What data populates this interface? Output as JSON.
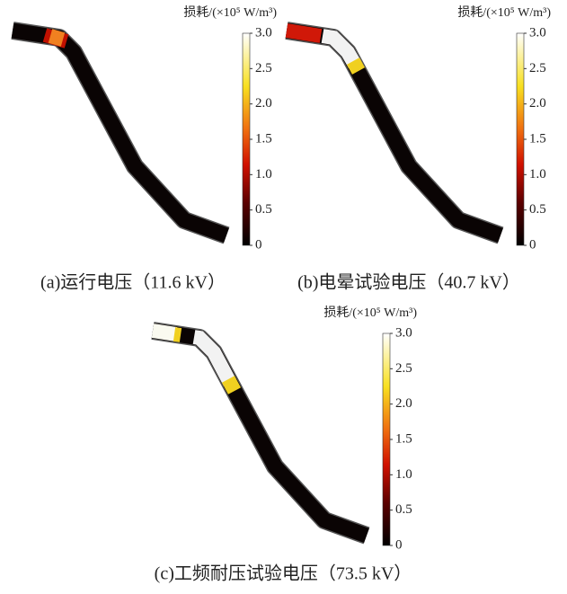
{
  "panels": [
    {
      "colorbar": {
        "title": "损耗/(×10⁵ W/m³)",
        "ticks": [
          {
            "value": 3,
            "label": "3.0"
          },
          {
            "value": 2.5,
            "label": "2.5"
          },
          {
            "value": 2,
            "label": "2.0"
          },
          {
            "value": 1.5,
            "label": "1.5"
          },
          {
            "value": 1,
            "label": "1.0"
          },
          {
            "value": 0.5,
            "label": "0.5"
          },
          0
        ]
      },
      "caption": "(a)运行电压（11.6 kV）"
    },
    {
      "colorbar": {
        "title": "损耗/(×10⁵ W/m³)",
        "ticks": [
          {
            "value": 3,
            "label": "3.0"
          },
          {
            "value": 2.5,
            "label": "2.5"
          },
          {
            "value": 2,
            "label": "2.0"
          },
          {
            "value": 1.5,
            "label": "1.5"
          },
          {
            "value": 1,
            "label": "1.0"
          },
          {
            "value": 0.5,
            "label": "0.5"
          },
          0
        ]
      },
      "caption": "(b)电晕试验电压（40.7 kV）"
    },
    {
      "colorbar": {
        "title": "损耗/(×10⁵ W/m³)",
        "ticks": [
          {
            "value": 3,
            "label": "3.0"
          },
          {
            "value": 2.5,
            "label": "2.5"
          },
          {
            "value": 2,
            "label": "2.0"
          },
          {
            "value": 1.5,
            "label": "1.5"
          },
          {
            "value": 1,
            "label": "1.0"
          },
          {
            "value": 0.5,
            "label": "0.5"
          },
          0
        ]
      },
      "caption": "(c)工频耐压试验电压（73.5 kV）"
    }
  ]
}
